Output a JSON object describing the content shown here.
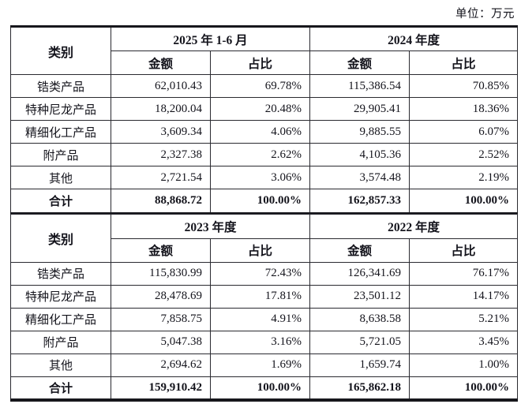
{
  "unit_label": "单位：万元",
  "tables": [
    {
      "category_header": "类别",
      "period_groups": [
        {
          "label": "2025 年 1-6 月",
          "amount_header": "金额",
          "ratio_header": "占比"
        },
        {
          "label": "2024 年度",
          "amount_header": "金额",
          "ratio_header": "占比"
        }
      ],
      "rows": [
        {
          "category": "锆类产品",
          "values": [
            "62,010.43",
            "69.78%",
            "115,386.54",
            "70.85%"
          ]
        },
        {
          "category": "特种尼龙产品",
          "values": [
            "18,200.04",
            "20.48%",
            "29,905.41",
            "18.36%"
          ]
        },
        {
          "category": "精细化工产品",
          "values": [
            "3,609.34",
            "4.06%",
            "9,885.55",
            "6.07%"
          ]
        },
        {
          "category": "附产品",
          "values": [
            "2,327.38",
            "2.62%",
            "4,105.36",
            "2.52%"
          ]
        },
        {
          "category": "其他",
          "values": [
            "2,721.54",
            "3.06%",
            "3,574.48",
            "2.19%"
          ]
        },
        {
          "category": "合计",
          "values": [
            "88,868.72",
            "100.00%",
            "162,857.33",
            "100.00%"
          ]
        }
      ]
    },
    {
      "category_header": "类别",
      "period_groups": [
        {
          "label": "2023 年度",
          "amount_header": "金额",
          "ratio_header": "占比"
        },
        {
          "label": "2022 年度",
          "amount_header": "金额",
          "ratio_header": "占比"
        }
      ],
      "rows": [
        {
          "category": "锆类产品",
          "values": [
            "115,830.99",
            "72.43%",
            "126,341.69",
            "76.17%"
          ]
        },
        {
          "category": "特种尼龙产品",
          "values": [
            "28,478.69",
            "17.81%",
            "23,501.12",
            "14.17%"
          ]
        },
        {
          "category": "精细化工产品",
          "values": [
            "7,858.75",
            "4.91%",
            "8,638.58",
            "5.21%"
          ]
        },
        {
          "category": "附产品",
          "values": [
            "5,047.38",
            "3.16%",
            "5,721.05",
            "3.45%"
          ]
        },
        {
          "category": "其他",
          "values": [
            "2,694.62",
            "1.69%",
            "1,659.74",
            "1.00%"
          ]
        },
        {
          "category": "合计",
          "values": [
            "159,910.42",
            "100.00%",
            "165,862.18",
            "100.00%"
          ]
        }
      ]
    }
  ]
}
